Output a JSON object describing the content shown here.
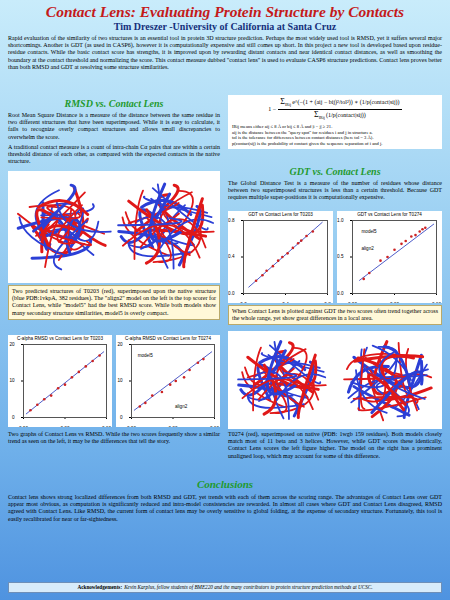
{
  "header": {
    "title": "Contact Lens: Evaluating Protein Structure by Contacts",
    "author": "Tim Dreszer -University of California at Santa Cruz"
  },
  "abstract": "Rapid evaluation of the similarity of two structures is an essential tool in protein 3D structure prediction. Perhaps the most widely used tool is RMSD, yet it suffers several major shortcomings. Another is GDT (as used in CASP6), however it is computationally expensive and still comes up short. In this project a new tool is developed based upon residue-residue contacts. While the basic contact score has strengths, it is improved upon by rewarding distant contacts and near identical contact distances, as well as smoothing the boundary at the contact threshold and normalizing the score. This contact measure dubbed \"contact lens\" is used to evaluate CASP6 structure predictions. Contact lens proves better than both RMSD and GDT at resolving some structure similarities.",
  "rmsd_section": {
    "heading": "RMSD vs. Contact Lens",
    "paragraphs": [
      "Root Mean Square Distance is a measure of the distance between the same residue in two different structures that have been superimposed. While it is easy to calculate, it fails to recognize overly compact structures and allows small discrepancies to overwhelm the score.",
      "A traditional contact measure is a count of intra-chain Cα pairs that are within a certain threshold distance of each other, as compared with the expected contacts in the native structure."
    ],
    "image_caption": "Two predicted structures of T0203 (red), superimposed upon the native structure (blue PDB:1vkpA, 382 residues). The \"align2\" model on the left is the top scorer for Contact Lens, while \"model5\" had the best RMSD score. While both models show many secondary structure similarities, model5 is overly compact.",
    "charts_caption": "Two graphs of Contact Lens vs RMSD. While the two scores frequently show a similar trend as seen on the left, it may be the differences that tell the story."
  },
  "formula": {
    "prefix": "1 −",
    "sum": "Σ",
    "sum_sub": "IRij",
    "numerator": "e^(−(1 + (aij − bij)²/tol²)) ∗ (1/p(contact|sij))",
    "denominator": "(1/p(contact|sij))",
    "definitions": [
      "IRij means either aij ≤ 8 Å or bij ≤ 8 Å and |i − j| ≥ 21.",
      "aij is the distance between the \"query spot\" for residues i and j in structure a.",
      "tol is the tolerance for differences between contact distances (here tol = 3 Å).",
      "p(contact|sij) is the probability of contact given the sequence separation of i and j."
    ]
  },
  "gdt_section": {
    "heading": "GDT vs. Contact Lens",
    "paragraph": "The Global Distance Test is a measure of the number of residues whose distance between two superimposed structures is less than a certain threshold. Because GDT requires multiple super-positions it is computationally expensive.",
    "charts_caption": "When Contact Lens is plotted against GDT the two scores often trend together across the whole range, yet show great differences in a local area.",
    "image_caption": "T0274 (red), superimposed on native (PDB: 1wgb 159 residues). Both models closely match most of 11 beta and 3 helices. However, while GDT scores these identically, Contact Lens scores the left figure higher. The model on the right has a prominent unaligned loop, which may account for some of this difference."
  },
  "conclusions": {
    "heading": "Conclusions",
    "paragraph": "Contact lens shows strong localized differences from both RMSD and GDT, yet trends with each of them across the scoring range. The advantages of Contact Lens over GDT appear most obvious, as computation is significantly reduced and intra-model consistencies are rewarded. In almost all cases where GDT and Contact Lens disagreed, RMSD agreed with Contact Lens. Like RMSD, the current form of contact lens may be overly sensitive to global folding, at the expense of secondary structure. Fortunately, this tool is easily recalibrated for near or far-sightedness."
  },
  "acknowledgements": {
    "label": "Acknowledgements:",
    "text": "Kevin Karplus, fellow students of BME220 and the many contributors to protein structure prediction methods at UCSC."
  },
  "chart_data": [
    {
      "type": "scatter",
      "title": "GDT vs Contact Lens for T0203",
      "color": "#cc2222",
      "x": [
        0.12,
        0.18,
        0.22,
        0.28,
        0.33,
        0.37,
        0.42,
        0.47,
        0.52,
        0.55,
        0.6,
        0.66
      ],
      "values": [
        0.14,
        0.2,
        0.25,
        0.3,
        0.36,
        0.4,
        0.44,
        0.5,
        0.55,
        0.58,
        0.63,
        0.68
      ],
      "fit": {
        "x": [
          0.05,
          0.75
        ],
        "y": [
          0.07,
          0.78
        ]
      },
      "xlim": [
        0,
        0.8
      ],
      "ylim": [
        0,
        0.8
      ],
      "xticks": [
        0,
        0.4,
        0.8
      ],
      "yticks": [
        0,
        0.4,
        0.8
      ],
      "grid": false
    },
    {
      "type": "scatter",
      "title": "GDT vs Contact Lens for T0274",
      "color": "#cc2222",
      "x": [
        0.08,
        0.12,
        0.2,
        0.25,
        0.3,
        0.35,
        0.38,
        0.42,
        0.45,
        0.48,
        0.5,
        0.52
      ],
      "values": [
        0.2,
        0.28,
        0.45,
        0.5,
        0.6,
        0.68,
        0.72,
        0.78,
        0.8,
        0.85,
        0.88,
        0.9
      ],
      "fit": {
        "x": [
          0.05,
          0.58
        ],
        "y": [
          0.18,
          0.95
        ]
      },
      "annotations": [
        {
          "x": 0.05,
          "y": 0.85,
          "text": "model5"
        },
        {
          "x": 0.05,
          "y": 0.62,
          "text": "align2"
        }
      ],
      "xlim": [
        0,
        0.6
      ],
      "ylim": [
        0,
        1
      ],
      "xticks": [
        0,
        0.3,
        0.6
      ],
      "yticks": [
        0,
        0.5,
        1
      ],
      "grid": false
    },
    {
      "type": "scatter",
      "title": "C-alpha RMSD vs Contact Lens for T0203",
      "color": "#cc2222",
      "x": [
        0.05,
        0.1,
        0.15,
        0.2,
        0.25,
        0.3,
        0.35,
        0.4,
        0.45,
        0.5,
        0.55
      ],
      "values": [
        2,
        3.5,
        5,
        6,
        8,
        9,
        11,
        12.5,
        14,
        15.5,
        17
      ],
      "fit": {
        "x": [
          0.02,
          0.58
        ],
        "y": [
          1,
          18
        ]
      },
      "xlim": [
        0,
        0.6
      ],
      "ylim": [
        0,
        20
      ],
      "xticks": [
        0,
        0.3,
        0.6
      ],
      "yticks": [
        0,
        10,
        20
      ],
      "grid": false
    },
    {
      "type": "scatter",
      "title": "C-alpha RMSD vs Contact Lens for T0274",
      "color": "#cc2222",
      "x": [
        0.06,
        0.1,
        0.15,
        0.22,
        0.28,
        0.32,
        0.38,
        0.42,
        0.48,
        0.52
      ],
      "values": [
        3,
        4,
        6,
        7,
        9,
        10,
        11,
        13,
        15,
        16
      ],
      "fit": {
        "x": [
          0.02,
          0.58
        ],
        "y": [
          2,
          18
        ]
      },
      "annotations": [
        {
          "x": 0.03,
          "y": 17,
          "text": "model5"
        },
        {
          "x": 0.3,
          "y": 3,
          "text": "align2"
        }
      ],
      "xlim": [
        0,
        0.6
      ],
      "ylim": [
        0,
        20
      ],
      "xticks": [
        0,
        0.3,
        0.6
      ],
      "yticks": [
        0,
        10,
        20
      ],
      "grid": false
    }
  ]
}
